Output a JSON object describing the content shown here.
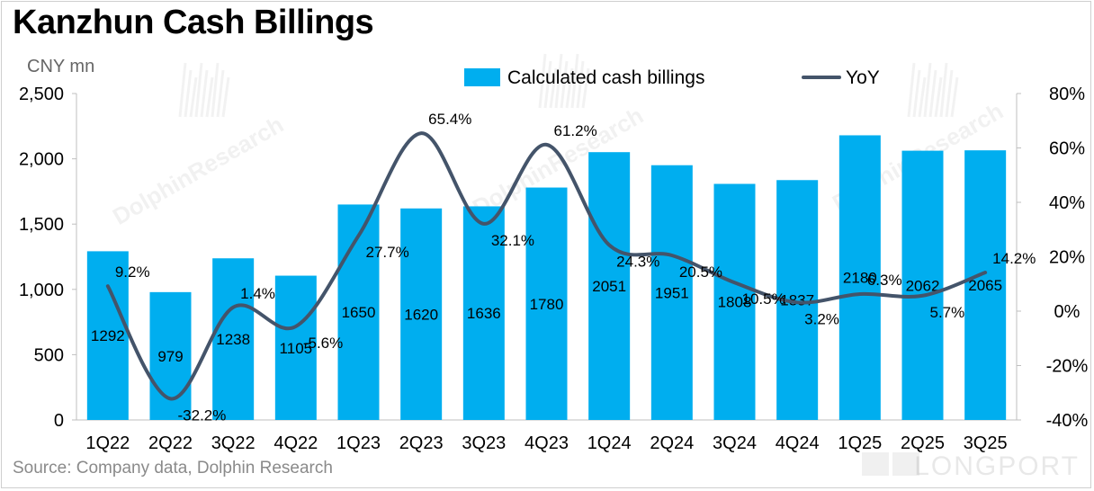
{
  "title": "Kanzhun Cash Billings",
  "unit_label": "CNY mn",
  "source": "Source: Company data,  Dolphin Research",
  "watermark": "DolphinResearch",
  "brand": "LONGPORT",
  "chart_data": {
    "type": "bar+line",
    "categories": [
      "1Q22",
      "2Q22",
      "3Q22",
      "4Q22",
      "1Q23",
      "2Q23",
      "3Q23",
      "4Q23",
      "1Q24",
      "2Q24",
      "3Q24",
      "4Q24",
      "1Q25",
      "2Q25",
      "3Q25"
    ],
    "series": [
      {
        "name": "Calculated cash billings",
        "type": "bar",
        "axis": "left",
        "color": "#00aeef",
        "values": [
          1292,
          979,
          1238,
          1105,
          1650,
          1620,
          1636,
          1780,
          2051,
          1951,
          1808,
          1837,
          2180,
          2062,
          2065
        ],
        "labels": [
          "1292",
          "979",
          "1238",
          "1105",
          "1650",
          "1620",
          "1636",
          "1780",
          "2051",
          "1951",
          "1808",
          "1837",
          "2180",
          "2062",
          "2065"
        ]
      },
      {
        "name": "YoY",
        "type": "line",
        "axis": "right",
        "color": "#44546a",
        "values": [
          9.2,
          -32.2,
          1.4,
          -5.6,
          27.7,
          65.4,
          32.1,
          61.2,
          24.3,
          20.5,
          10.5,
          3.2,
          6.3,
          5.7,
          14.2
        ],
        "labels": [
          "9.2%",
          "-32.2%",
          "1.4%",
          "-5.6%",
          "27.7%",
          "65.4%",
          "32.1%",
          "61.2%",
          "24.3%",
          "20.5%",
          "10.5%",
          "3.2%",
          "6.3%",
          "5.7%",
          "14.2%"
        ]
      }
    ],
    "left_axis": {
      "min": 0,
      "max": 2500,
      "ticks": [
        "0",
        "500",
        "1,000",
        "1,500",
        "2,000",
        "2,500"
      ]
    },
    "right_axis": {
      "min": -40,
      "max": 80,
      "ticks": [
        "-40%",
        "-20%",
        "0%",
        "20%",
        "40%",
        "60%",
        "80%"
      ]
    },
    "legend_position": "top-right",
    "grid": false
  }
}
